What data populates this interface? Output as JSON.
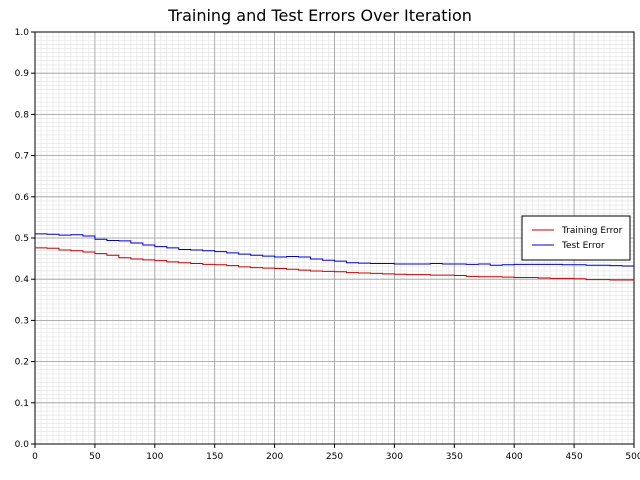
{
  "chart_data": {
    "type": "line",
    "title": "Training and Test Errors Over Iteration",
    "xlabel": "",
    "ylabel": "",
    "xlim": [
      0,
      500
    ],
    "ylim": [
      0,
      1.0
    ],
    "x_ticks": [
      "0",
      "50",
      "100",
      "150",
      "200",
      "250",
      "300",
      "350",
      "400",
      "450",
      "500"
    ],
    "y_ticks": [
      "0.0",
      "0.1",
      "0.2",
      "0.3",
      "0.4",
      "0.5",
      "0.6",
      "0.7",
      "0.8",
      "0.9",
      "1.0"
    ],
    "grid": true,
    "legend_position": "right",
    "series": [
      {
        "name": "Training Error",
        "color": "#cc0000",
        "points": [
          [
            0,
            0.476
          ],
          [
            10,
            0.475
          ],
          [
            20,
            0.471
          ],
          [
            30,
            0.469
          ],
          [
            40,
            0.466
          ],
          [
            50,
            0.462
          ],
          [
            60,
            0.458
          ],
          [
            70,
            0.452
          ],
          [
            80,
            0.449
          ],
          [
            90,
            0.447
          ],
          [
            100,
            0.445
          ],
          [
            110,
            0.442
          ],
          [
            120,
            0.44
          ],
          [
            130,
            0.438
          ],
          [
            140,
            0.436
          ],
          [
            150,
            0.435
          ],
          [
            160,
            0.433
          ],
          [
            170,
            0.43
          ],
          [
            180,
            0.428
          ],
          [
            190,
            0.427
          ],
          [
            200,
            0.426
          ],
          [
            210,
            0.424
          ],
          [
            220,
            0.422
          ],
          [
            230,
            0.42
          ],
          [
            240,
            0.419
          ],
          [
            250,
            0.418
          ],
          [
            260,
            0.416
          ],
          [
            270,
            0.415
          ],
          [
            280,
            0.414
          ],
          [
            290,
            0.413
          ],
          [
            300,
            0.412
          ],
          [
            310,
            0.411
          ],
          [
            320,
            0.411
          ],
          [
            330,
            0.41
          ],
          [
            340,
            0.41
          ],
          [
            350,
            0.409
          ],
          [
            360,
            0.407
          ],
          [
            370,
            0.406
          ],
          [
            380,
            0.406
          ],
          [
            390,
            0.405
          ],
          [
            400,
            0.404
          ],
          [
            410,
            0.404
          ],
          [
            420,
            0.403
          ],
          [
            430,
            0.402
          ],
          [
            440,
            0.402
          ],
          [
            450,
            0.401
          ],
          [
            460,
            0.399
          ],
          [
            470,
            0.399
          ],
          [
            480,
            0.398
          ],
          [
            490,
            0.398
          ],
          [
            500,
            0.397
          ]
        ]
      },
      {
        "name": "Test Error",
        "color": "#0000cc",
        "points": [
          [
            0,
            0.51
          ],
          [
            10,
            0.509
          ],
          [
            20,
            0.507
          ],
          [
            30,
            0.508
          ],
          [
            40,
            0.505
          ],
          [
            50,
            0.497
          ],
          [
            60,
            0.494
          ],
          [
            70,
            0.493
          ],
          [
            80,
            0.488
          ],
          [
            90,
            0.483
          ],
          [
            100,
            0.479
          ],
          [
            110,
            0.476
          ],
          [
            120,
            0.472
          ],
          [
            130,
            0.471
          ],
          [
            140,
            0.469
          ],
          [
            150,
            0.467
          ],
          [
            160,
            0.464
          ],
          [
            170,
            0.461
          ],
          [
            180,
            0.458
          ],
          [
            190,
            0.456
          ],
          [
            200,
            0.454
          ],
          [
            210,
            0.455
          ],
          [
            220,
            0.454
          ],
          [
            230,
            0.449
          ],
          [
            240,
            0.446
          ],
          [
            250,
            0.444
          ],
          [
            260,
            0.44
          ],
          [
            270,
            0.439
          ],
          [
            280,
            0.438
          ],
          [
            290,
            0.438
          ],
          [
            300,
            0.437
          ],
          [
            310,
            0.437
          ],
          [
            320,
            0.437
          ],
          [
            330,
            0.438
          ],
          [
            340,
            0.437
          ],
          [
            350,
            0.437
          ],
          [
            360,
            0.436
          ],
          [
            370,
            0.437
          ],
          [
            380,
            0.434
          ],
          [
            390,
            0.435
          ],
          [
            400,
            0.436
          ],
          [
            410,
            0.436
          ],
          [
            420,
            0.436
          ],
          [
            430,
            0.436
          ],
          [
            440,
            0.435
          ],
          [
            450,
            0.435
          ],
          [
            460,
            0.434
          ],
          [
            470,
            0.434
          ],
          [
            480,
            0.433
          ],
          [
            490,
            0.432
          ],
          [
            500,
            0.432
          ]
        ]
      }
    ]
  }
}
